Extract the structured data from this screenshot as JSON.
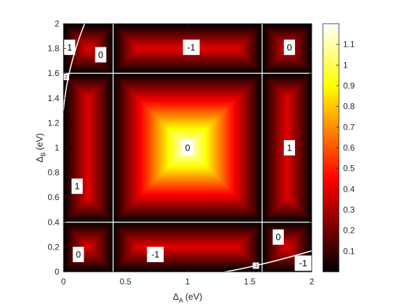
{
  "chart_data": {
    "type": "heatmap",
    "title": "",
    "xlabel": {
      "symbol": "Δ",
      "sub": "A",
      "unit": "(eV)"
    },
    "ylabel": {
      "symbol": "Δ",
      "sub": "B",
      "unit": "(eV)"
    },
    "xlim": [
      0,
      2
    ],
    "ylim": [
      0,
      2
    ],
    "xticks": [
      "0",
      "0.5",
      "1",
      "1.5",
      "2"
    ],
    "yticks": [
      "0",
      "0.2",
      "0.4",
      "0.6",
      "0.8",
      "1",
      "1.2",
      "1.4",
      "1.6",
      "1.8",
      "2"
    ],
    "colorbar": {
      "colormap": "hot",
      "range": [
        0,
        1.2
      ],
      "ticks": [
        "0.1",
        "0.2",
        "0.3",
        "0.4",
        "0.5",
        "0.6",
        "0.7",
        "0.8",
        "0.9",
        "1",
        "1.1"
      ]
    },
    "grid_lines": {
      "x": [
        0.4,
        1.6
      ],
      "y": [
        0.4,
        1.6
      ],
      "color": "#ffffff"
    },
    "boundary_curves": [
      {
        "from": [
          0,
          1.3
        ],
        "to": [
          0.17,
          2
        ]
      },
      {
        "from": [
          1.3,
          0
        ],
        "to": [
          2,
          0.17
        ]
      }
    ],
    "region_labels": [
      {
        "text": "1",
        "x": 0.05,
        "y": 1.81
      },
      {
        "text": "0",
        "x": 0.3,
        "y": 1.75
      },
      {
        "text": "-1",
        "x": 1.03,
        "y": 1.81
      },
      {
        "text": "0",
        "x": 1.82,
        "y": 1.81
      },
      {
        "text": "2",
        "x": 0.02,
        "y": 1.57,
        "small": true
      },
      {
        "text": "1",
        "x": 0.11,
        "y": 0.69
      },
      {
        "text": "0",
        "x": 1.0,
        "y": 1.0
      },
      {
        "text": "1",
        "x": 1.82,
        "y": 1.0
      },
      {
        "text": "0",
        "x": 0.12,
        "y": 0.14
      },
      {
        "text": "-1",
        "x": 0.74,
        "y": 0.14
      },
      {
        "text": "0",
        "x": 1.73,
        "y": 0.28
      },
      {
        "text": "-2",
        "x": 1.55,
        "y": 0.05,
        "small": true
      },
      {
        "text": "-1",
        "x": 1.93,
        "y": 0.07
      }
    ]
  }
}
